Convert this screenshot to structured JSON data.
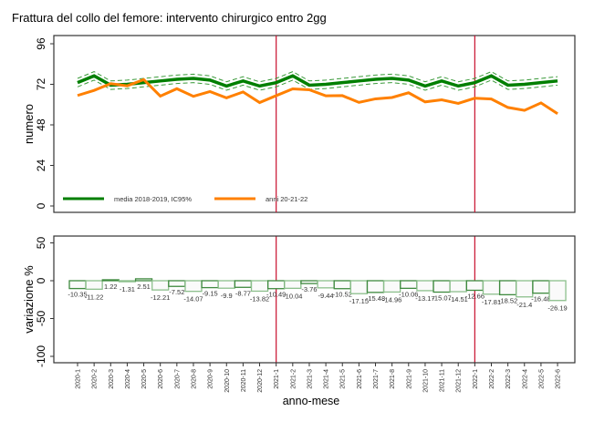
{
  "chart_data": [
    {
      "type": "line",
      "title": "Frattura del collo del femore: intervento chirurgico entro 2gg",
      "xlabel": "",
      "ylabel": "numero",
      "ylim": [
        -4,
        100
      ],
      "yticks": [
        0,
        24,
        48,
        72,
        96
      ],
      "legend": {
        "position": "bottom-left",
        "entries": [
          "media 2018-2019, IC95%",
          "anni 20-21-22"
        ]
      },
      "series": [
        {
          "name": "media 2018-2019, IC95%",
          "color": "#007f00",
          "values": [
            73,
            77,
            71.5,
            72,
            73,
            74,
            75,
            75.5,
            74.5,
            71,
            74,
            71,
            73,
            77,
            71.5,
            72,
            73,
            74,
            75,
            75.5,
            74.5,
            71,
            74,
            71,
            73,
            77,
            71.5,
            72,
            73,
            74
          ],
          "ci_halfwidth": 2.5
        },
        {
          "name": "anni 20-21-22",
          "color": "#ff8000",
          "values": [
            65.4,
            68.4,
            72.4,
            71.1,
            74.8,
            65.0,
            69.4,
            64.9,
            67.7,
            64.0,
            67.5,
            61.2,
            65.3,
            69.3,
            68.8,
            65.2,
            65.3,
            61.3,
            63.4,
            64.2,
            67.0,
            61.6,
            62.8,
            60.7,
            63.8,
            63.3,
            58.3,
            56.6,
            61.0,
            54.6
          ]
        }
      ]
    },
    {
      "type": "bar",
      "xlabel": "anno-mese",
      "ylabel": "variazione %",
      "ylim": [
        -105,
        58
      ],
      "yticks": [
        50,
        0,
        -50,
        -100
      ],
      "categories": [
        "2020-1",
        "2020-2",
        "2020-3",
        "2020-4",
        "2020-5",
        "2020-6",
        "2020-7",
        "2020-8",
        "2020-9",
        "2020-10",
        "2020-11",
        "2020-12",
        "2021-1",
        "2021-2",
        "2021-3",
        "2021-4",
        "2021-5",
        "2021-6",
        "2021-7",
        "2021-8",
        "2021-9",
        "2021-10",
        "2021-11",
        "2021-12",
        "2022-1",
        "2022-2",
        "2022-3",
        "2022-4",
        "2022-5",
        "2022-6"
      ],
      "values": [
        -10.35,
        -11.22,
        1.22,
        -1.31,
        2.51,
        -12.21,
        -7.52,
        -14.07,
        -9.15,
        -9.9,
        -8.77,
        -13.82,
        -10.49,
        -10.04,
        -3.76,
        -9.44,
        -10.52,
        -17.15,
        -15.48,
        -14.96,
        -10.06,
        -13.17,
        -15.07,
        -14.51,
        -12.66,
        -17.81,
        -18.52,
        -21.4,
        -16.48,
        -26.19
      ],
      "value_labels": [
        "-10.35",
        "-11.22",
        "1.22",
        "-1.31",
        "2.51",
        "-12.21",
        "-7.52",
        "-14.07",
        "-9.15",
        "-9.9",
        "-8.77",
        "-13.82",
        "-10.49",
        "-10.04",
        "-3.76",
        "-9.44",
        "-10.52",
        "-17.15",
        "-15.48",
        "-14.96",
        "-10.06",
        "-13.17",
        "-15.07",
        "-14.51",
        "-12.66",
        "-17.81",
        "-18.52",
        "-21.4",
        "-16.48",
        "-26.19"
      ],
      "reference_lines": [
        "2021-1",
        "2022-1"
      ],
      "reference_color": "#c8102e"
    }
  ]
}
